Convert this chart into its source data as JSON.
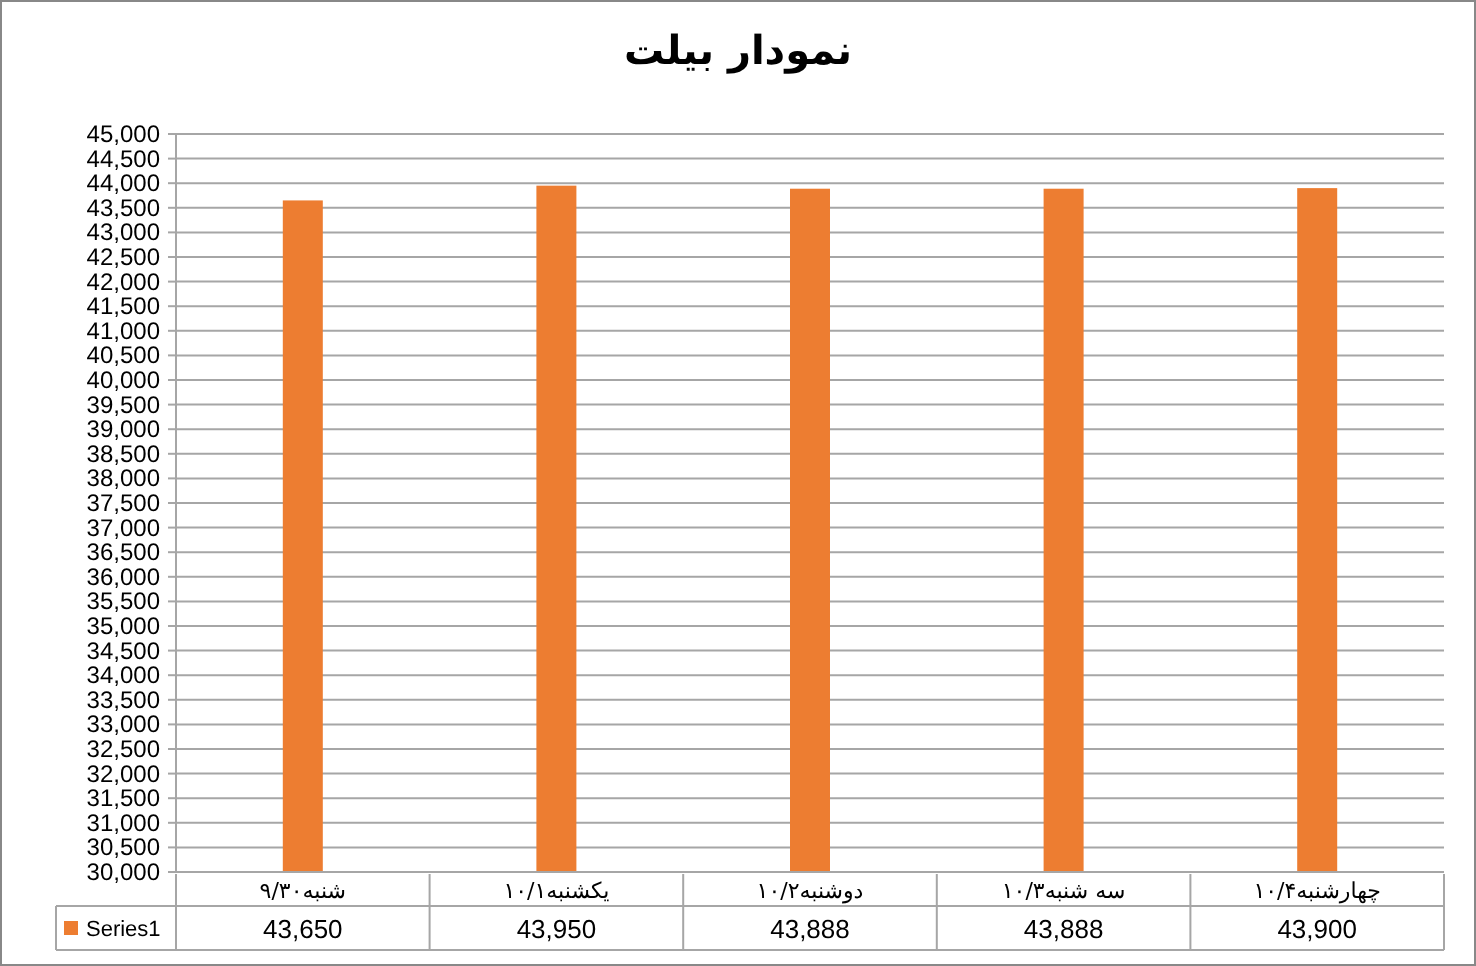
{
  "chart_data": {
    "type": "bar",
    "title": "نمودار بیلت",
    "categories": [
      "شنبه۹/۳۰",
      "یکشنبه۱۰/۱",
      "دوشنبه۱۰/۲",
      "سه شنبه۱۰/۳",
      "چهارشنبه۱۰/۴"
    ],
    "series": [
      {
        "name": "Series1",
        "color": "#ed7d31",
        "values": [
          43650,
          43950,
          43888,
          43888,
          43900
        ],
        "value_labels": [
          "43,650",
          "43,950",
          "43,888",
          "43,888",
          "43,900"
        ]
      }
    ],
    "ylim": [
      30000,
      45000
    ],
    "yticks": [
      {
        "value": 30000,
        "label": "30,000"
      },
      {
        "value": 30500,
        "label": "30,500"
      },
      {
        "value": 31000,
        "label": "31,000"
      },
      {
        "value": 31500,
        "label": "31,500"
      },
      {
        "value": 32000,
        "label": "32,000"
      },
      {
        "value": 32500,
        "label": "32,500"
      },
      {
        "value": 33000,
        "label": "33,000"
      },
      {
        "value": 33500,
        "label": "33,500"
      },
      {
        "value": 34000,
        "label": "34,000"
      },
      {
        "value": 34500,
        "label": "34,500"
      },
      {
        "value": 35000,
        "label": "35,000"
      },
      {
        "value": 35500,
        "label": "35,500"
      },
      {
        "value": 36000,
        "label": "36,000"
      },
      {
        "value": 36500,
        "label": "36,500"
      },
      {
        "value": 37000,
        "label": "37,000"
      },
      {
        "value": 37500,
        "label": "37,500"
      },
      {
        "value": 38000,
        "label": "38,000"
      },
      {
        "value": 38500,
        "label": "38,500"
      },
      {
        "value": 39000,
        "label": "39,000"
      },
      {
        "value": 39500,
        "label": "39,500"
      },
      {
        "value": 40000,
        "label": "40,000"
      },
      {
        "value": 40500,
        "label": "40,500"
      },
      {
        "value": 41000,
        "label": "41,000"
      },
      {
        "value": 41500,
        "label": "41,500"
      },
      {
        "value": 42000,
        "label": "42,000"
      },
      {
        "value": 42500,
        "label": "42,500"
      },
      {
        "value": 43000,
        "label": "43,000"
      },
      {
        "value": 43500,
        "label": "43,500"
      },
      {
        "value": 44000,
        "label": "44,000"
      },
      {
        "value": 44500,
        "label": "44,500"
      },
      {
        "value": 45000,
        "label": "45,000"
      }
    ],
    "grid": "y",
    "legend": "bottom"
  }
}
